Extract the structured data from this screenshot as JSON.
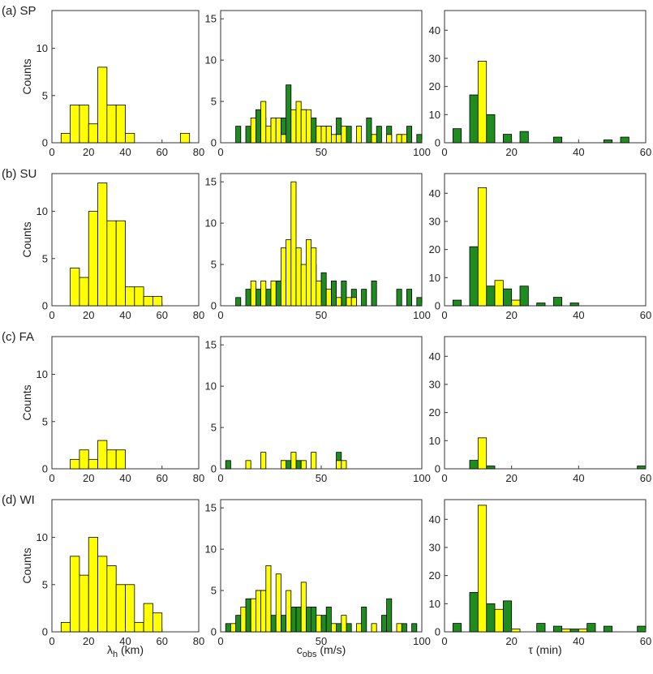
{
  "figure": {
    "row_labels": [
      "(a) SP",
      "(b) SU",
      "(c) FA",
      "(d) WI"
    ],
    "column_xlabels": [
      {
        "main": "λ",
        "sub": "h",
        "after": " (km)"
      },
      {
        "main": "c",
        "sub": "obs",
        "after": " (m/s)"
      },
      {
        "main": "τ",
        "sub": "",
        "after": " (min)"
      }
    ],
    "ylabel": "Counts",
    "colors": {
      "yellow": "#ffff00",
      "green": "#1e8c1e",
      "edge": "#000000"
    }
  },
  "chart_data": [
    {
      "type": "bar",
      "row": 0,
      "col": 0,
      "xlim": [
        0,
        80
      ],
      "ylim": [
        0,
        14
      ],
      "xticks": [
        0,
        20,
        40,
        60,
        80
      ],
      "yticks": [
        0,
        5,
        10
      ],
      "bin_width": 5,
      "series": [
        {
          "color": "yellow",
          "x": [
            7.5,
            12.5,
            17.5,
            22.5,
            27.5,
            32.5,
            37.5,
            42.5,
            47.5,
            52.5,
            57.5,
            62.5,
            67.5,
            72.5
          ],
          "values": [
            1,
            4,
            4,
            2,
            8,
            4,
            4,
            1,
            0,
            0,
            0,
            0,
            0,
            1
          ]
        }
      ]
    },
    {
      "type": "bar",
      "row": 0,
      "col": 1,
      "xlim": [
        0,
        100
      ],
      "ylim": [
        0,
        16
      ],
      "xticks": [
        0,
        50,
        100
      ],
      "yticks": [
        0,
        5,
        10,
        15
      ],
      "bin_width": 2.5,
      "series": [
        {
          "color": "green",
          "x": [
            8.75,
            13.75,
            18.75,
            21.25,
            26.25,
            31.25,
            33.75,
            36.25,
            41.25,
            46.25,
            51.25,
            53.75,
            58.75,
            63.75,
            68.75,
            73.75,
            78.75,
            83.75,
            88.75,
            93.75,
            98.75
          ],
          "values": [
            2,
            2,
            4,
            3,
            3,
            3,
            7,
            3,
            4,
            3,
            2,
            2,
            3,
            2,
            2,
            3,
            2,
            2,
            1,
            2,
            1
          ]
        },
        {
          "color": "yellow",
          "x": [
            16.25,
            21.25,
            23.75,
            26.25,
            28.75,
            31.25,
            36.25,
            38.75,
            41.25,
            43.75,
            48.75,
            51.25,
            53.75,
            56.25,
            58.75,
            61.25,
            68.75,
            76.25,
            83.75,
            88.75,
            91.25
          ],
          "values": [
            3,
            5,
            2,
            3,
            3,
            1,
            4,
            5,
            4,
            4,
            2,
            2,
            2,
            1,
            1,
            2,
            2,
            1,
            1,
            1,
            1
          ]
        }
      ]
    },
    {
      "type": "bar",
      "row": 0,
      "col": 2,
      "xlim": [
        0,
        60
      ],
      "ylim": [
        0,
        47
      ],
      "xticks": [
        0,
        20,
        40,
        60
      ],
      "yticks": [
        0,
        10,
        20,
        30,
        40
      ],
      "bin_width": 2.5,
      "series": [
        {
          "color": "green",
          "x": [
            3.75,
            8.75,
            13.75,
            18.75,
            23.75,
            33.75,
            48.75,
            53.75
          ],
          "values": [
            5,
            17,
            10,
            3,
            4,
            2,
            1,
            2
          ]
        },
        {
          "color": "yellow",
          "x": [
            11.25
          ],
          "values": [
            29
          ]
        }
      ]
    },
    {
      "type": "bar",
      "row": 1,
      "col": 0,
      "xlim": [
        0,
        80
      ],
      "ylim": [
        0,
        14
      ],
      "xticks": [
        0,
        20,
        40,
        60,
        80
      ],
      "yticks": [
        0,
        5,
        10
      ],
      "bin_width": 5,
      "series": [
        {
          "color": "yellow",
          "x": [
            12.5,
            17.5,
            22.5,
            27.5,
            32.5,
            37.5,
            42.5,
            47.5,
            52.5,
            57.5
          ],
          "values": [
            4,
            3,
            10,
            13,
            9,
            9,
            2,
            2,
            1,
            1
          ]
        }
      ]
    },
    {
      "type": "bar",
      "row": 1,
      "col": 1,
      "xlim": [
        0,
        100
      ],
      "ylim": [
        0,
        16
      ],
      "xticks": [
        0,
        50,
        100
      ],
      "yticks": [
        0,
        5,
        10,
        15
      ],
      "bin_width": 2.5,
      "series": [
        {
          "color": "green",
          "x": [
            8.75,
            13.75,
            18.75,
            23.75,
            28.75,
            33.75,
            36.25,
            41.25,
            43.75,
            46.25,
            51.25,
            56.25,
            61.25,
            66.25,
            71.25,
            76.25,
            88.75,
            93.75,
            98.75
          ],
          "values": [
            1,
            2,
            2,
            2,
            3,
            3,
            3,
            4,
            5,
            5,
            4,
            3,
            3,
            2,
            2,
            3,
            2,
            2,
            1
          ]
        },
        {
          "color": "yellow",
          "x": [
            16.25,
            21.25,
            26.25,
            31.25,
            33.75,
            36.25,
            38.75,
            41.25,
            43.75,
            46.25,
            48.75,
            53.75,
            58.75,
            63.75,
            66.25
          ],
          "values": [
            3,
            3,
            3,
            7,
            8,
            15,
            7,
            5,
            8,
            7,
            3,
            2,
            1,
            1,
            1
          ]
        }
      ]
    },
    {
      "type": "bar",
      "row": 1,
      "col": 2,
      "xlim": [
        0,
        60
      ],
      "ylim": [
        0,
        47
      ],
      "xticks": [
        0,
        20,
        40,
        60
      ],
      "yticks": [
        0,
        10,
        20,
        30,
        40
      ],
      "bin_width": 2.5,
      "series": [
        {
          "color": "green",
          "x": [
            3.75,
            8.75,
            13.75,
            18.75,
            23.75,
            28.75,
            33.75,
            38.75
          ],
          "values": [
            2,
            21,
            7,
            6,
            7,
            1,
            3,
            1
          ]
        },
        {
          "color": "yellow",
          "x": [
            11.25,
            16.25,
            21.25
          ],
          "values": [
            42,
            9,
            2
          ]
        }
      ]
    },
    {
      "type": "bar",
      "row": 2,
      "col": 0,
      "xlim": [
        0,
        80
      ],
      "ylim": [
        0,
        14
      ],
      "xticks": [
        0,
        20,
        40,
        60,
        80
      ],
      "yticks": [
        0,
        5,
        10
      ],
      "bin_width": 5,
      "series": [
        {
          "color": "yellow",
          "x": [
            12.5,
            17.5,
            22.5,
            27.5,
            32.5,
            37.5
          ],
          "values": [
            1,
            2,
            1,
            3,
            2,
            2
          ]
        }
      ]
    },
    {
      "type": "bar",
      "row": 2,
      "col": 1,
      "xlim": [
        0,
        100
      ],
      "ylim": [
        0,
        16
      ],
      "xticks": [
        0,
        50,
        100
      ],
      "yticks": [
        0,
        5,
        10,
        15
      ],
      "bin_width": 2.5,
      "series": [
        {
          "color": "green",
          "x": [
            3.75,
            31.25,
            33.75,
            38.75,
            58.75
          ],
          "values": [
            1,
            1,
            1,
            1,
            2
          ]
        },
        {
          "color": "yellow",
          "x": [
            13.75,
            21.25,
            31.25,
            36.25,
            41.25,
            46.25,
            58.75,
            61.25
          ],
          "values": [
            1,
            2,
            1,
            2,
            1,
            2,
            1,
            1
          ]
        }
      ]
    },
    {
      "type": "bar",
      "row": 2,
      "col": 2,
      "xlim": [
        0,
        60
      ],
      "ylim": [
        0,
        47
      ],
      "xticks": [
        0,
        20,
        40,
        60
      ],
      "yticks": [
        0,
        10,
        20,
        30,
        40
      ],
      "bin_width": 2.5,
      "series": [
        {
          "color": "green",
          "x": [
            8.75,
            13.75,
            58.75
          ],
          "values": [
            3,
            1,
            1
          ]
        },
        {
          "color": "yellow",
          "x": [
            11.25
          ],
          "values": [
            11
          ]
        }
      ]
    },
    {
      "type": "bar",
      "row": 3,
      "col": 0,
      "xlim": [
        0,
        80
      ],
      "ylim": [
        0,
        14
      ],
      "xticks": [
        0,
        20,
        40,
        60,
        80
      ],
      "yticks": [
        0,
        5,
        10
      ],
      "bin_width": 5,
      "series": [
        {
          "color": "yellow",
          "x": [
            7.5,
            12.5,
            17.5,
            22.5,
            27.5,
            32.5,
            37.5,
            42.5,
            47.5,
            52.5,
            57.5
          ],
          "values": [
            1,
            8,
            6,
            10,
            8,
            7,
            5,
            5,
            1,
            3,
            2
          ]
        }
      ]
    },
    {
      "type": "bar",
      "row": 3,
      "col": 1,
      "xlim": [
        0,
        100
      ],
      "ylim": [
        0,
        16
      ],
      "xticks": [
        0,
        50,
        100
      ],
      "yticks": [
        0,
        5,
        10,
        15
      ],
      "bin_width": 2.5,
      "series": [
        {
          "color": "green",
          "x": [
            3.75,
            8.75,
            13.75,
            16.25,
            18.75,
            21.25,
            26.25,
            31.25,
            36.25,
            38.75,
            43.75,
            46.25,
            51.25,
            53.75,
            58.75,
            63.75,
            71.25,
            81.25,
            83.75,
            91.25,
            96.25
          ],
          "values": [
            1,
            2,
            4,
            4,
            5,
            5,
            2,
            2,
            3,
            3,
            3,
            3,
            2,
            3,
            1,
            1,
            3,
            2,
            4,
            1,
            1
          ]
        },
        {
          "color": "yellow",
          "x": [
            6.25,
            11.25,
            16.25,
            18.75,
            21.25,
            23.75,
            28.75,
            33.75,
            41.25,
            48.75,
            56.25,
            61.25,
            68.75,
            76.25,
            88.75
          ],
          "values": [
            1,
            3,
            4,
            5,
            5,
            8,
            7,
            5,
            6,
            2,
            1,
            2,
            1,
            1,
            1
          ]
        }
      ]
    },
    {
      "type": "bar",
      "row": 3,
      "col": 2,
      "xlim": [
        0,
        60
      ],
      "ylim": [
        0,
        47
      ],
      "xticks": [
        0,
        20,
        40,
        60
      ],
      "yticks": [
        0,
        10,
        20,
        30,
        40
      ],
      "bin_width": 2.5,
      "series": [
        {
          "color": "green",
          "x": [
            3.75,
            8.75,
            13.75,
            18.75,
            28.75,
            33.75,
            38.75,
            43.75,
            48.75,
            58.75
          ],
          "values": [
            3,
            14,
            10,
            11,
            3,
            2,
            1,
            3,
            2,
            2
          ]
        },
        {
          "color": "yellow",
          "x": [
            11.25,
            16.25,
            21.25,
            36.25,
            41.25
          ],
          "values": [
            45,
            8,
            1,
            1,
            1
          ]
        }
      ]
    }
  ]
}
